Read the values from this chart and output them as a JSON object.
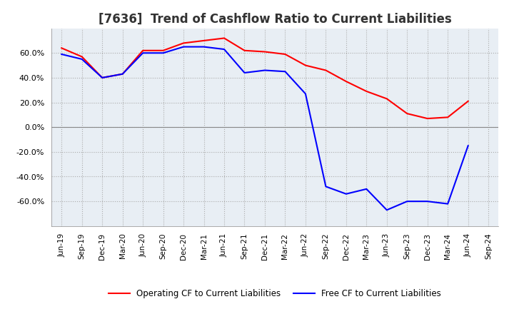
{
  "title": "[7636]  Trend of Cashflow Ratio to Current Liabilities",
  "xlabel_labels": [
    "Jun-19",
    "Sep-19",
    "Dec-19",
    "Mar-20",
    "Jun-20",
    "Sep-20",
    "Dec-20",
    "Mar-21",
    "Jun-21",
    "Sep-21",
    "Dec-21",
    "Mar-22",
    "Jun-22",
    "Sep-22",
    "Dec-22",
    "Mar-23",
    "Jun-23",
    "Sep-23",
    "Dec-23",
    "Mar-24",
    "Jun-24",
    "Sep-24"
  ],
  "operating_cf": [
    64,
    57,
    40,
    43,
    62,
    62,
    68,
    70,
    72,
    62,
    61,
    59,
    50,
    46,
    37,
    29,
    23,
    11,
    7,
    8,
    21,
    null
  ],
  "free_cf": [
    59,
    55,
    40,
    43,
    60,
    60,
    65,
    65,
    63,
    44,
    46,
    45,
    27,
    -48,
    -54,
    -50,
    -67,
    -60,
    -60,
    -62,
    -15,
    null
  ],
  "ylim": [
    -80,
    80
  ],
  "yticks": [
    -60,
    -40,
    -20,
    0,
    20,
    40,
    60
  ],
  "operating_color": "#FF0000",
  "free_color": "#0000FF",
  "grid_color": "#AAAAAA",
  "plot_bg_color": "#E8EEF4",
  "fig_bg_color": "#FFFFFF",
  "title_fontsize": 12,
  "legend_labels": [
    "Operating CF to Current Liabilities",
    "Free CF to Current Liabilities"
  ]
}
